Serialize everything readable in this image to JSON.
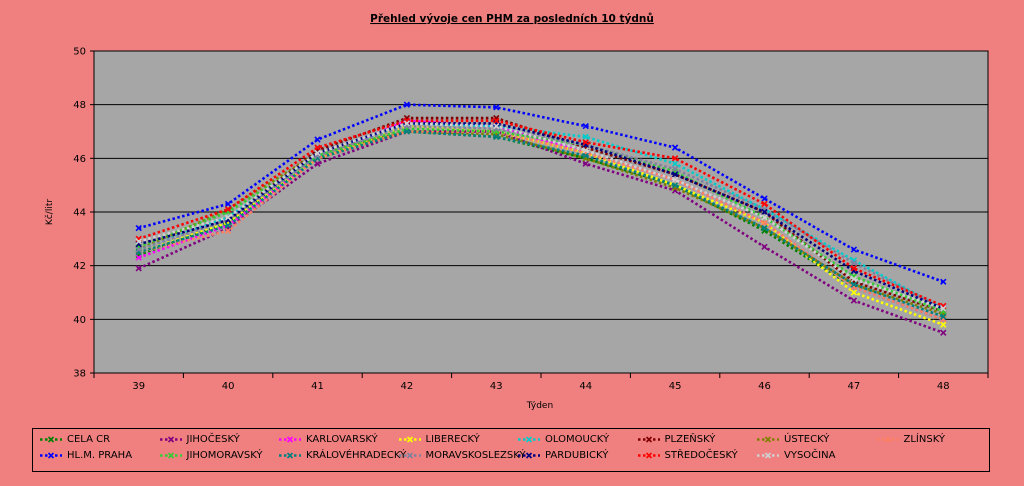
{
  "chart_data": {
    "type": "line",
    "title": "Přehled vývoje cen PHM za posledních 10 týdnů",
    "xlabel": "Týden",
    "ylabel": "Kč/litr",
    "ylim": [
      38,
      50
    ],
    "yticks": [
      38,
      40,
      42,
      44,
      46,
      48,
      50
    ],
    "categories": [
      "39",
      "40",
      "41",
      "42",
      "43",
      "44",
      "45",
      "46",
      "47",
      "48"
    ],
    "grid": true,
    "legend_position": "bottom",
    "series": [
      {
        "name": "CELA CR",
        "color": "#008000",
        "values": [
          42.4,
          43.6,
          46.0,
          47.0,
          46.8,
          46.0,
          45.0,
          43.3,
          41.2,
          40.0
        ]
      },
      {
        "name": "JIHOČESKÝ",
        "color": "#800080",
        "values": [
          41.9,
          43.4,
          45.8,
          47.0,
          47.0,
          45.8,
          44.8,
          42.7,
          40.7,
          39.5
        ]
      },
      {
        "name": "KARLOVARSKÝ",
        "color": "#ff00ff",
        "values": [
          42.3,
          43.5,
          46.0,
          47.4,
          47.2,
          46.2,
          45.2,
          43.6,
          41.2,
          40.0
        ]
      },
      {
        "name": "LIBERECKÝ",
        "color": "#ffff00",
        "values": [
          42.5,
          43.6,
          46.0,
          47.2,
          47.0,
          46.2,
          45.0,
          43.6,
          41.0,
          39.8
        ]
      },
      {
        "name": "OLOMOUCKÝ",
        "color": "#00cccc",
        "values": [
          42.6,
          43.8,
          46.1,
          47.3,
          47.2,
          46.8,
          45.8,
          44.1,
          42.2,
          40.4
        ]
      },
      {
        "name": "PLZEŇSKÝ",
        "color": "#800000",
        "values": [
          42.8,
          43.7,
          46.3,
          47.5,
          47.5,
          46.4,
          45.4,
          44.0,
          41.4,
          40.3
        ]
      },
      {
        "name": "ÚSTECKÝ",
        "color": "#808000",
        "values": [
          42.6,
          44.1,
          46.2,
          47.0,
          46.9,
          46.0,
          44.9,
          43.4,
          41.3,
          40.2
        ]
      },
      {
        "name": "ZLÍNSKÝ",
        "color": "#ff8060",
        "values": [
          42.5,
          43.3,
          46.0,
          47.0,
          47.0,
          46.2,
          45.2,
          43.6,
          41.2,
          40.0
        ]
      },
      {
        "name": "HL.M. PRAHA",
        "color": "#0000ff",
        "values": [
          43.4,
          44.3,
          46.7,
          48.0,
          47.9,
          47.2,
          46.4,
          44.5,
          42.6,
          41.4
        ]
      },
      {
        "name": "JIHOMORAVSKÝ",
        "color": "#33cc33",
        "values": [
          42.7,
          44.0,
          46.1,
          47.1,
          47.0,
          46.5,
          45.5,
          43.8,
          41.6,
          40.3
        ]
      },
      {
        "name": "KRÁLOVÉHRADECKÝ",
        "color": "#008080",
        "values": [
          42.5,
          43.5,
          46.0,
          47.0,
          46.8,
          46.1,
          45.0,
          43.4,
          41.3,
          40.1
        ]
      },
      {
        "name": "MORAVSKOSLEZSKÝ",
        "color": "#8080a0",
        "values": [
          42.6,
          43.7,
          46.1,
          47.2,
          47.1,
          46.5,
          45.6,
          44.1,
          42.1,
          40.4
        ]
      },
      {
        "name": "PARDUBICKÝ",
        "color": "#000080",
        "values": [
          42.8,
          43.7,
          46.2,
          47.3,
          47.3,
          46.5,
          45.4,
          44.0,
          41.8,
          40.4
        ]
      },
      {
        "name": "STŘEDOČESKÝ",
        "color": "#ff0000",
        "values": [
          43.0,
          44.1,
          46.4,
          47.4,
          47.4,
          46.6,
          46.0,
          44.3,
          41.9,
          40.5
        ]
      },
      {
        "name": "VYSOČINA",
        "color": "#d0d0d0",
        "values": [
          42.9,
          43.8,
          46.2,
          47.3,
          47.2,
          46.3,
          45.2,
          43.8,
          41.5,
          40.4
        ]
      }
    ]
  }
}
